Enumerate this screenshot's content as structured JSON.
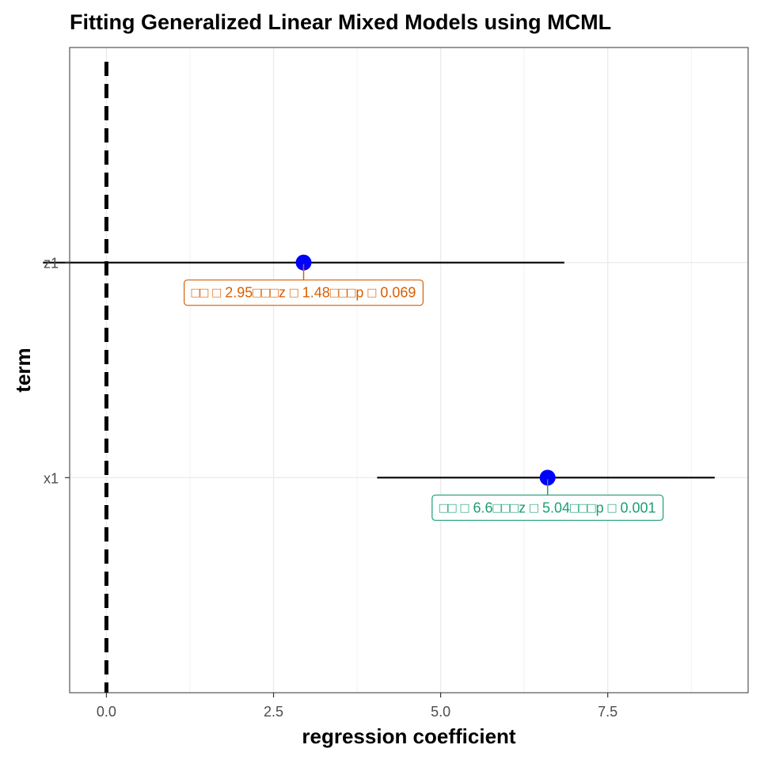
{
  "chart_data": {
    "type": "scatter",
    "title": "Fitting Generalized Linear Mixed Models using MCML",
    "xlabel": "regression coefficient",
    "ylabel": "term",
    "xlim": [
      -0.55,
      9.6
    ],
    "x_ticks": [
      0.0,
      2.5,
      5.0,
      7.5
    ],
    "x_tick_labels": [
      "0.0",
      "2.5",
      "5.0",
      "7.5"
    ],
    "categories": [
      "x1",
      "z1"
    ],
    "series": [
      {
        "values": [
          {
            "term": "z1",
            "estimate": 2.95,
            "conf_low": -0.95,
            "conf_high": 6.85
          },
          {
            "term": "x1",
            "estimate": 6.6,
            "conf_low": 4.05,
            "conf_high": 9.1
          }
        ]
      }
    ],
    "reference_line": {
      "x": 0,
      "style": "dashed"
    },
    "annotations": [
      {
        "term": "z1",
        "text": "□□ □ 2.95□□□z □ 1.48□□□p □ 0.069",
        "color": "#D95F02"
      },
      {
        "term": "x1",
        "text": "□□ □ 6.6□□□z □ 5.04□□□p □ 0.001",
        "color": "#1B9E77"
      }
    ],
    "point_color": "#0000FF",
    "grid": true,
    "panel_border": true
  }
}
